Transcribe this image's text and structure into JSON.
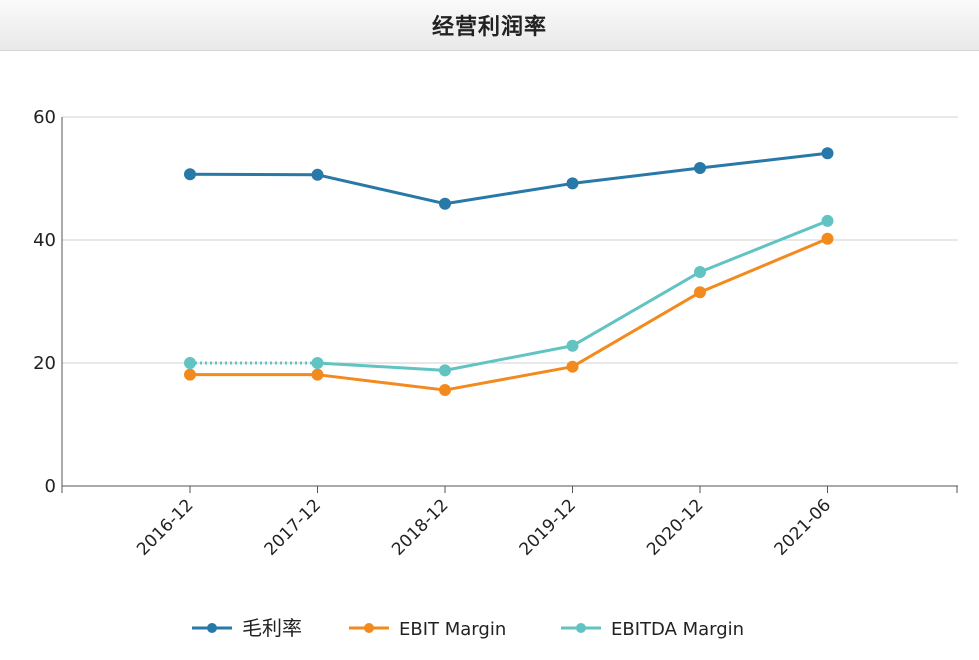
{
  "panel": {
    "title": "经营利润率"
  },
  "chart_data": {
    "type": "line",
    "title": "",
    "xlabel": "",
    "ylabel": "",
    "categories": [
      "2016-12",
      "2017-12",
      "2018-12",
      "2019-12",
      "2020-12",
      "2021-06"
    ],
    "ylim": [
      0,
      60
    ],
    "yticks": [
      0,
      20,
      40,
      60
    ],
    "grid": true,
    "legend_position": "bottom",
    "series": [
      {
        "name": "毛利率",
        "color": "#2878a8",
        "values": [
          50.7,
          50.6,
          45.9,
          49.2,
          51.7,
          54.1
        ]
      },
      {
        "name": "EBIT Margin",
        "color": "#f28a1e",
        "values": [
          18.1,
          18.1,
          15.6,
          19.4,
          31.5,
          40.2
        ]
      },
      {
        "name": "EBITDA Margin",
        "color": "#62c3c3",
        "values": [
          20.0,
          20.0,
          18.8,
          22.8,
          34.8,
          43.1
        ],
        "dashed_segments": [
          0
        ]
      }
    ]
  }
}
